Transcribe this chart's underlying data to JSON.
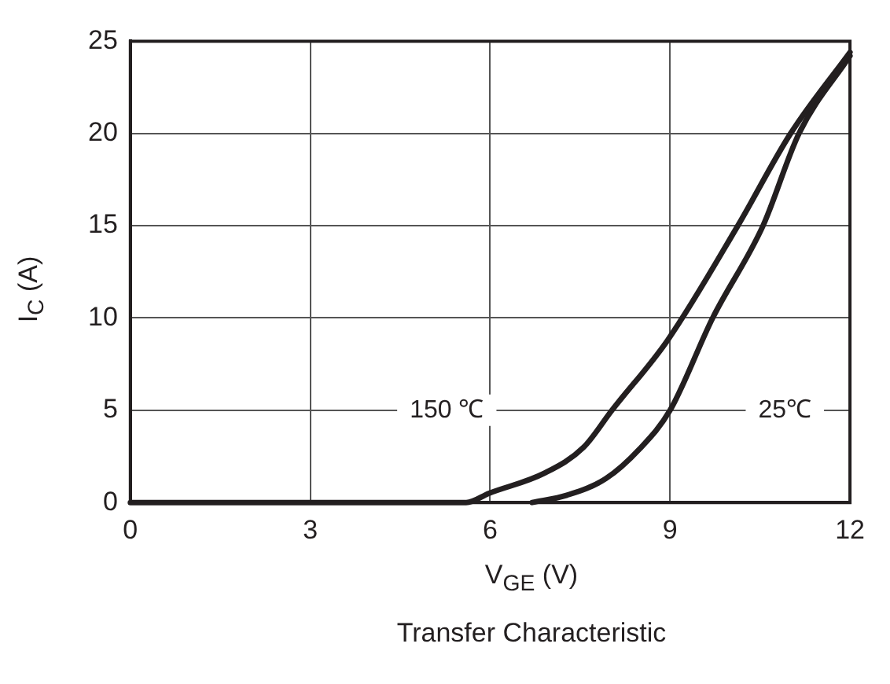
{
  "chart_data": {
    "type": "line",
    "title": "Transfer Characteristic",
    "xlabel": "V$_{GE}$ (V)",
    "ylabel": "I$_{C}$ (A)",
    "series": [
      {
        "name": "150 ℃",
        "color": "#231f20",
        "x": [
          0,
          5.6,
          5.98,
          6.91,
          7.56,
          8.03,
          8.96,
          10.13,
          11.01,
          12
        ],
        "values": [
          0,
          0,
          0.5,
          1.6,
          3.0,
          5,
          8.8,
          15,
          20,
          24.4
        ]
      },
      {
        "name": "25℃",
        "color": "#231f20",
        "x": [
          6.7,
          7.28,
          7.93,
          8.49,
          9.0,
          9.71,
          10.55,
          11.15,
          12
        ],
        "values": [
          0,
          0.4,
          1.3,
          2.9,
          5,
          10,
          15,
          20,
          24.2
        ]
      }
    ],
    "xlim": [
      0,
      12
    ],
    "xticks": [
      0,
      3,
      6,
      9,
      12
    ],
    "ylim": [
      0,
      25
    ],
    "yticks": [
      0,
      5,
      10,
      15,
      20,
      25
    ],
    "grid": true,
    "legend": false,
    "marker": "none",
    "line_style": "solid"
  }
}
